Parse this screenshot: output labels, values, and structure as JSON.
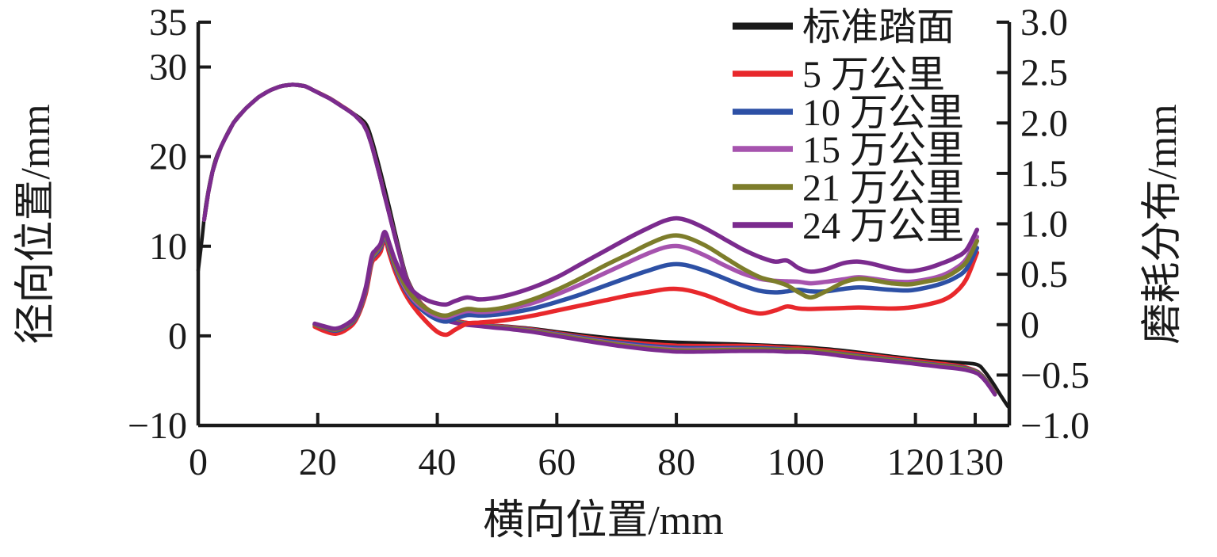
{
  "figure": {
    "background": "#ffffff",
    "axis_color": "#1a1a1a"
  },
  "chart_data": {
    "type": "line",
    "title": "",
    "x_axis": {
      "label": "横向位置/mm",
      "range": [
        0,
        135.7
      ],
      "tick_values": [
        0,
        20,
        40,
        60,
        80,
        100,
        120,
        130
      ],
      "tick_labels": [
        "0",
        "20",
        "40",
        "60",
        "80",
        "100",
        "120",
        "130"
      ]
    },
    "y_axis_left": {
      "label": "径向位置/mm",
      "range": [
        -10,
        35
      ],
      "tick_values": [
        35,
        30,
        20,
        10,
        0,
        -10
      ],
      "tick_labels": [
        "35",
        "30",
        "20",
        "10",
        "0",
        "−10"
      ]
    },
    "y_axis_right": {
      "label": "磨耗分布/mm",
      "range": [
        -1.0,
        3.0
      ],
      "tick_values": [
        3.0,
        2.5,
        2.0,
        1.5,
        1.0,
        0.5,
        0,
        -0.5,
        -1.0
      ],
      "tick_labels": [
        "3.0",
        "2.5",
        "2.0",
        "1.5",
        "1.0",
        "0.5",
        "0",
        "−0.5",
        "−1.0"
      ]
    },
    "legend": {
      "position": "top-right",
      "items": [
        {
          "label": "标准踏面",
          "color": "#1a1a1a"
        },
        {
          "label": "5 万公里",
          "color": "#e8282c"
        },
        {
          "label": "10 万公里",
          "color": "#2d50a5"
        },
        {
          "label": "15 万公里",
          "color": "#a653ae"
        },
        {
          "label": "21 万公里",
          "color": "#7d7d2b"
        },
        {
          "label": "24 万公里",
          "color": "#7b2b8e"
        }
      ]
    },
    "profile_standard": {
      "name": "标准踏面",
      "color": "#1a1a1a",
      "axis": "left",
      "points_xy_mm": [
        [
          0,
          7.3
        ],
        [
          0.6,
          10.6
        ],
        [
          1.3,
          14.7
        ],
        [
          2.6,
          19.0
        ],
        [
          4,
          21.4
        ],
        [
          6,
          23.9
        ],
        [
          8,
          25.4
        ],
        [
          10,
          26.6
        ],
        [
          12,
          27.4
        ],
        [
          14,
          27.9
        ],
        [
          16,
          28.05
        ],
        [
          18,
          27.85
        ],
        [
          20,
          27.15
        ],
        [
          22,
          26.45
        ],
        [
          24,
          25.6
        ],
        [
          26,
          24.8
        ],
        [
          28,
          23.7
        ],
        [
          29,
          22.0
        ],
        [
          30,
          19.6
        ],
        [
          31,
          17.0
        ],
        [
          32,
          14.3
        ],
        [
          33,
          11.4
        ],
        [
          34.5,
          7.4
        ],
        [
          35.5,
          5.6
        ],
        [
          37,
          3.9
        ],
        [
          38.5,
          2.9
        ],
        [
          40,
          2.2
        ],
        [
          42,
          1.8
        ],
        [
          44,
          1.55
        ],
        [
          46,
          1.4
        ],
        [
          49,
          1.2
        ],
        [
          52,
          1.05
        ],
        [
          56,
          0.8
        ],
        [
          60,
          0.45
        ],
        [
          65,
          0.05
        ],
        [
          70,
          -0.3
        ],
        [
          75,
          -0.55
        ],
        [
          80,
          -0.72
        ],
        [
          85,
          -0.82
        ],
        [
          90,
          -0.92
        ],
        [
          95,
          -1.05
        ],
        [
          100,
          -1.2
        ],
        [
          105,
          -1.45
        ],
        [
          110,
          -1.8
        ],
        [
          115,
          -2.2
        ],
        [
          120,
          -2.6
        ],
        [
          124,
          -2.85
        ],
        [
          127.5,
          -3.0
        ],
        [
          130.3,
          -3.2
        ],
        [
          131.5,
          -3.9
        ],
        [
          133,
          -5.3
        ],
        [
          134.5,
          -6.9
        ],
        [
          135.5,
          -7.9
        ]
      ]
    },
    "wear_x_mm": [
      19.5,
      21,
      23,
      25,
      26.5,
      28,
      29,
      29.7,
      30.5,
      31.2,
      32,
      33,
      34.5,
      36,
      38,
      40,
      41.5,
      43,
      45,
      47,
      49,
      52,
      56,
      60,
      64,
      68,
      72,
      75,
      78,
      80,
      82,
      85,
      88,
      91,
      94,
      96.5,
      98.5,
      100.5,
      102.5,
      105,
      108,
      110.5,
      113,
      116,
      119,
      122,
      124.5,
      126.5,
      128.5,
      130.3
    ],
    "wear_series": [
      {
        "name": "5 万公里",
        "color": "#e8282c",
        "axis": "right",
        "wear_mm": [
          -0.02,
          -0.06,
          -0.09,
          -0.04,
          0.06,
          0.3,
          0.6,
          0.66,
          0.72,
          0.85,
          0.7,
          0.52,
          0.32,
          0.18,
          0.04,
          -0.07,
          -0.1,
          -0.05,
          0.01,
          0.02,
          0.03,
          0.05,
          0.09,
          0.14,
          0.19,
          0.24,
          0.29,
          0.32,
          0.35,
          0.355,
          0.34,
          0.29,
          0.22,
          0.15,
          0.11,
          0.14,
          0.18,
          0.16,
          0.155,
          0.16,
          0.165,
          0.17,
          0.165,
          0.16,
          0.17,
          0.2,
          0.24,
          0.31,
          0.45,
          0.715
        ]
      },
      {
        "name": "10 万公里",
        "color": "#2d50a5",
        "axis": "right",
        "wear_mm": [
          0.0,
          -0.03,
          -0.06,
          -0.01,
          0.08,
          0.33,
          0.63,
          0.7,
          0.76,
          0.88,
          0.74,
          0.56,
          0.36,
          0.23,
          0.12,
          0.05,
          0.03,
          0.06,
          0.095,
          0.09,
          0.095,
          0.115,
          0.16,
          0.225,
          0.3,
          0.385,
          0.47,
          0.53,
          0.585,
          0.6,
          0.585,
          0.53,
          0.46,
          0.39,
          0.335,
          0.32,
          0.33,
          0.345,
          0.33,
          0.33,
          0.355,
          0.37,
          0.36,
          0.345,
          0.34,
          0.37,
          0.41,
          0.46,
          0.55,
          0.76
        ]
      },
      {
        "name": "15 万公里",
        "color": "#a653ae",
        "axis": "right",
        "wear_mm": [
          0.0,
          -0.025,
          -0.05,
          0.0,
          0.09,
          0.34,
          0.645,
          0.715,
          0.78,
          0.9,
          0.76,
          0.58,
          0.38,
          0.25,
          0.145,
          0.085,
          0.07,
          0.1,
          0.135,
          0.125,
          0.13,
          0.155,
          0.215,
          0.3,
          0.4,
          0.51,
          0.62,
          0.7,
          0.765,
          0.78,
          0.755,
          0.68,
          0.59,
          0.51,
          0.455,
          0.435,
          0.43,
          0.425,
          0.41,
          0.425,
          0.45,
          0.47,
          0.455,
          0.43,
          0.425,
          0.45,
          0.49,
          0.55,
          0.65,
          0.87
        ]
      },
      {
        "name": "21 万公里",
        "color": "#7d7d2b",
        "axis": "right",
        "wear_mm": [
          0.0,
          -0.025,
          -0.05,
          0.0,
          0.09,
          0.345,
          0.65,
          0.72,
          0.785,
          0.91,
          0.77,
          0.59,
          0.4,
          0.27,
          0.165,
          0.105,
          0.09,
          0.12,
          0.155,
          0.145,
          0.15,
          0.18,
          0.25,
          0.345,
          0.46,
          0.585,
          0.7,
          0.79,
          0.865,
          0.885,
          0.86,
          0.78,
          0.67,
          0.56,
          0.47,
          0.43,
          0.39,
          0.32,
          0.27,
          0.33,
          0.42,
          0.455,
          0.44,
          0.41,
          0.4,
          0.43,
          0.46,
          0.52,
          0.62,
          0.83
        ]
      },
      {
        "name": "24 万公里",
        "color": "#7b2b8e",
        "axis": "right",
        "wear_mm": [
          0.01,
          -0.015,
          -0.04,
          0.01,
          0.1,
          0.36,
          0.67,
          0.74,
          0.8,
          0.92,
          0.8,
          0.63,
          0.45,
          0.33,
          0.25,
          0.21,
          0.2,
          0.235,
          0.27,
          0.25,
          0.26,
          0.295,
          0.37,
          0.47,
          0.6,
          0.73,
          0.86,
          0.95,
          1.03,
          1.055,
          1.03,
          0.95,
          0.85,
          0.75,
          0.67,
          0.625,
          0.635,
          0.56,
          0.525,
          0.55,
          0.61,
          0.625,
          0.6,
          0.555,
          0.53,
          0.56,
          0.61,
          0.66,
          0.74,
          0.94
        ]
      }
    ],
    "derived_note": "worn wheel profiles are drawn as profile_standard minus wear_mm (left axis, same mm units)"
  }
}
